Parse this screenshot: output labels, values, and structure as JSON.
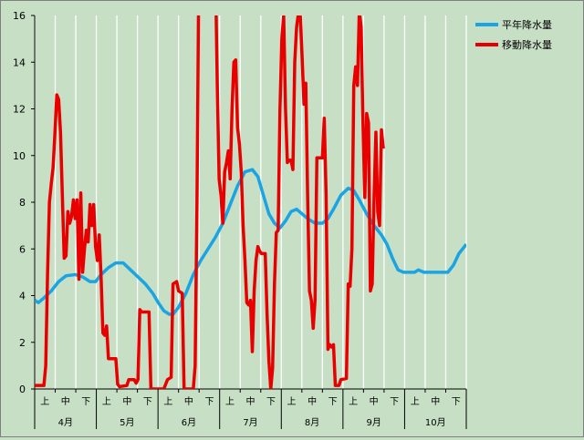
{
  "chart_data": {
    "type": "line",
    "ylim": [
      0,
      16
    ],
    "yticks": [
      0,
      2,
      4,
      6,
      8,
      10,
      12,
      14,
      16
    ],
    "x_count": 214,
    "months": [
      {
        "label": "4月",
        "dekads": [
          "上",
          "中",
          "下"
        ]
      },
      {
        "label": "5月",
        "dekads": [
          "上",
          "中",
          "下"
        ]
      },
      {
        "label": "6月",
        "dekads": [
          "上",
          "中",
          "下"
        ]
      },
      {
        "label": "7月",
        "dekads": [
          "上",
          "中",
          "下"
        ]
      },
      {
        "label": "8月",
        "dekads": [
          "上",
          "中",
          "下"
        ]
      },
      {
        "label": "9月",
        "dekads": [
          "上",
          "中",
          "下"
        ]
      },
      {
        "label": "10月",
        "dekads": [
          "上",
          "中",
          "下"
        ]
      }
    ],
    "grid": {
      "vertical": true,
      "horizontal": false
    },
    "legend_position": "top-right",
    "series": [
      {
        "name": "平年降水量",
        "color": "#1aa4e4",
        "points": [
          [
            0,
            3.8
          ],
          [
            2,
            3.7
          ],
          [
            5,
            3.9
          ],
          [
            9,
            4.2
          ],
          [
            13,
            4.6
          ],
          [
            17,
            4.85
          ],
          [
            22,
            4.9
          ],
          [
            26,
            4.8
          ],
          [
            30,
            4.6
          ],
          [
            33,
            4.6
          ],
          [
            36,
            4.9
          ],
          [
            40,
            5.2
          ],
          [
            44,
            5.4
          ],
          [
            48,
            5.4
          ],
          [
            52,
            5.1
          ],
          [
            56,
            4.8
          ],
          [
            60,
            4.5
          ],
          [
            64,
            4.1
          ],
          [
            67,
            3.7
          ],
          [
            70,
            3.35
          ],
          [
            73,
            3.2
          ],
          [
            75,
            3.2
          ],
          [
            78,
            3.5
          ],
          [
            82,
            4.1
          ],
          [
            86,
            4.9
          ],
          [
            90,
            5.5
          ],
          [
            94,
            6.0
          ],
          [
            98,
            6.5
          ],
          [
            102,
            7.1
          ],
          [
            106,
            7.9
          ],
          [
            110,
            8.7
          ],
          [
            114,
            9.3
          ],
          [
            118,
            9.4
          ],
          [
            121,
            9.1
          ],
          [
            124,
            8.3
          ],
          [
            127,
            7.5
          ],
          [
            130,
            7.1
          ],
          [
            133,
            6.9
          ],
          [
            136,
            7.2
          ],
          [
            139,
            7.6
          ],
          [
            142,
            7.7
          ],
          [
            145,
            7.5
          ],
          [
            148,
            7.3
          ],
          [
            152,
            7.1
          ],
          [
            156,
            7.1
          ],
          [
            159,
            7.3
          ],
          [
            162,
            7.7
          ],
          [
            166,
            8.3
          ],
          [
            170,
            8.6
          ],
          [
            173,
            8.5
          ],
          [
            176,
            8.1
          ],
          [
            180,
            7.5
          ],
          [
            184,
            7.0
          ],
          [
            188,
            6.6
          ],
          [
            191,
            6.2
          ],
          [
            194,
            5.6
          ],
          [
            197,
            5.1
          ],
          [
            200,
            5.0
          ],
          [
            203,
            5.0
          ],
          [
            206,
            5.0
          ],
          [
            208,
            5.1
          ],
          [
            211,
            5.0
          ],
          [
            214,
            5.0
          ],
          [
            220,
            5.0
          ],
          [
            224,
            5.0
          ],
          [
            227,
            5.3
          ],
          [
            230,
            5.8
          ],
          [
            234,
            6.2
          ]
        ]
      },
      {
        "name": "移動降水量",
        "color": "#e80000",
        "points": [
          [
            0,
            0.15
          ],
          [
            5,
            0.15
          ],
          [
            6,
            1.0
          ],
          [
            7,
            5.0
          ],
          [
            8,
            8.0
          ],
          [
            9,
            8.8
          ],
          [
            10,
            9.5
          ],
          [
            11,
            11.0
          ],
          [
            12,
            12.6
          ],
          [
            13,
            12.4
          ],
          [
            14,
            11.0
          ],
          [
            15,
            8.3
          ],
          [
            16,
            5.6
          ],
          [
            17,
            5.7
          ],
          [
            18,
            7.6
          ],
          [
            19,
            7.1
          ],
          [
            20,
            7.4
          ],
          [
            21,
            8.1
          ],
          [
            22,
            7.3
          ],
          [
            23,
            8.1
          ],
          [
            24,
            4.7
          ],
          [
            25,
            8.4
          ],
          [
            26,
            5.0
          ],
          [
            27,
            6.0
          ],
          [
            28,
            6.8
          ],
          [
            29,
            6.3
          ],
          [
            30,
            7.9
          ],
          [
            31,
            7.0
          ],
          [
            32,
            7.9
          ],
          [
            33,
            6.1
          ],
          [
            34,
            5.5
          ],
          [
            35,
            6.6
          ],
          [
            36,
            4.8
          ],
          [
            37,
            2.4
          ],
          [
            38,
            2.3
          ],
          [
            39,
            2.7
          ],
          [
            40,
            1.3
          ],
          [
            41,
            1.3
          ],
          [
            44,
            1.3
          ],
          [
            45,
            0.2
          ],
          [
            46,
            0.1
          ],
          [
            50,
            0.15
          ],
          [
            51,
            0.4
          ],
          [
            54,
            0.4
          ],
          [
            55,
            0.25
          ],
          [
            56,
            0.4
          ],
          [
            57,
            3.4
          ],
          [
            58,
            3.3
          ],
          [
            62,
            3.3
          ],
          [
            63,
            0.0
          ],
          [
            70,
            0.0
          ],
          [
            71,
            0.2
          ],
          [
            72,
            0.4
          ],
          [
            74,
            0.5
          ],
          [
            75,
            4.5
          ],
          [
            77,
            4.6
          ],
          [
            78,
            4.2
          ],
          [
            80,
            4.1
          ],
          [
            81,
            0.0
          ],
          [
            86,
            0.0
          ],
          [
            87,
            1.0
          ],
          [
            88,
            8.0
          ],
          [
            89,
            18.0
          ],
          [
            98,
            18.0
          ],
          [
            99,
            13.0
          ],
          [
            100,
            9.0
          ],
          [
            101,
            8.3
          ],
          [
            102,
            7.1
          ],
          [
            103,
            9.3
          ],
          [
            104,
            9.7
          ],
          [
            105,
            10.2
          ],
          [
            106,
            9.0
          ],
          [
            107,
            12.0
          ],
          [
            108,
            14.0
          ],
          [
            109,
            14.1
          ],
          [
            110,
            11.2
          ],
          [
            111,
            10.5
          ],
          [
            112,
            9.3
          ],
          [
            113,
            7.0
          ],
          [
            114,
            5.5
          ],
          [
            115,
            3.7
          ],
          [
            116,
            3.6
          ],
          [
            117,
            3.8
          ],
          [
            118,
            1.6
          ],
          [
            119,
            4.2
          ],
          [
            120,
            5.5
          ],
          [
            121,
            6.1
          ],
          [
            122,
            5.9
          ],
          [
            123,
            5.8
          ],
          [
            125,
            5.8
          ],
          [
            126,
            3.2
          ],
          [
            127,
            1.2
          ],
          [
            128,
            0.0
          ],
          [
            129,
            0.9
          ],
          [
            130,
            4.5
          ],
          [
            131,
            6.7
          ],
          [
            132,
            6.8
          ],
          [
            133,
            12.0
          ],
          [
            134,
            15.0
          ],
          [
            135,
            16.0
          ],
          [
            136,
            12.0
          ],
          [
            137,
            9.7
          ],
          [
            138,
            9.8
          ],
          [
            139,
            9.8
          ],
          [
            140,
            9.4
          ],
          [
            141,
            14.0
          ],
          [
            142,
            15.5
          ],
          [
            143,
            16.1
          ],
          [
            144,
            16.0
          ],
          [
            145,
            14.2
          ],
          [
            146,
            12.2
          ],
          [
            147,
            13.1
          ],
          [
            148,
            8.2
          ],
          [
            149,
            4.2
          ],
          [
            150,
            3.8
          ],
          [
            151,
            2.6
          ],
          [
            152,
            3.8
          ],
          [
            153,
            9.9
          ],
          [
            154,
            9.9
          ],
          [
            156,
            9.9
          ],
          [
            157,
            11.6
          ],
          [
            158,
            8.3
          ],
          [
            159,
            1.7
          ],
          [
            160,
            1.9
          ],
          [
            161,
            1.8
          ],
          [
            162,
            1.9
          ],
          [
            163,
            0.15
          ],
          [
            165,
            0.15
          ],
          [
            166,
            0.4
          ],
          [
            169,
            0.45
          ],
          [
            170,
            4.5
          ],
          [
            171,
            4.4
          ],
          [
            172,
            6.0
          ],
          [
            173,
            13.0
          ],
          [
            174,
            13.8
          ],
          [
            175,
            13.0
          ],
          [
            176,
            16.2
          ],
          [
            177,
            15.5
          ],
          [
            178,
            11.4
          ],
          [
            179,
            8.2
          ],
          [
            180,
            11.8
          ],
          [
            181,
            11.4
          ],
          [
            182,
            4.2
          ],
          [
            183,
            4.5
          ],
          [
            184,
            8.2
          ],
          [
            185,
            11.0
          ],
          [
            186,
            7.6
          ],
          [
            187,
            7.0
          ],
          [
            188,
            11.1
          ],
          [
            189,
            10.3
          ]
        ]
      }
    ]
  }
}
